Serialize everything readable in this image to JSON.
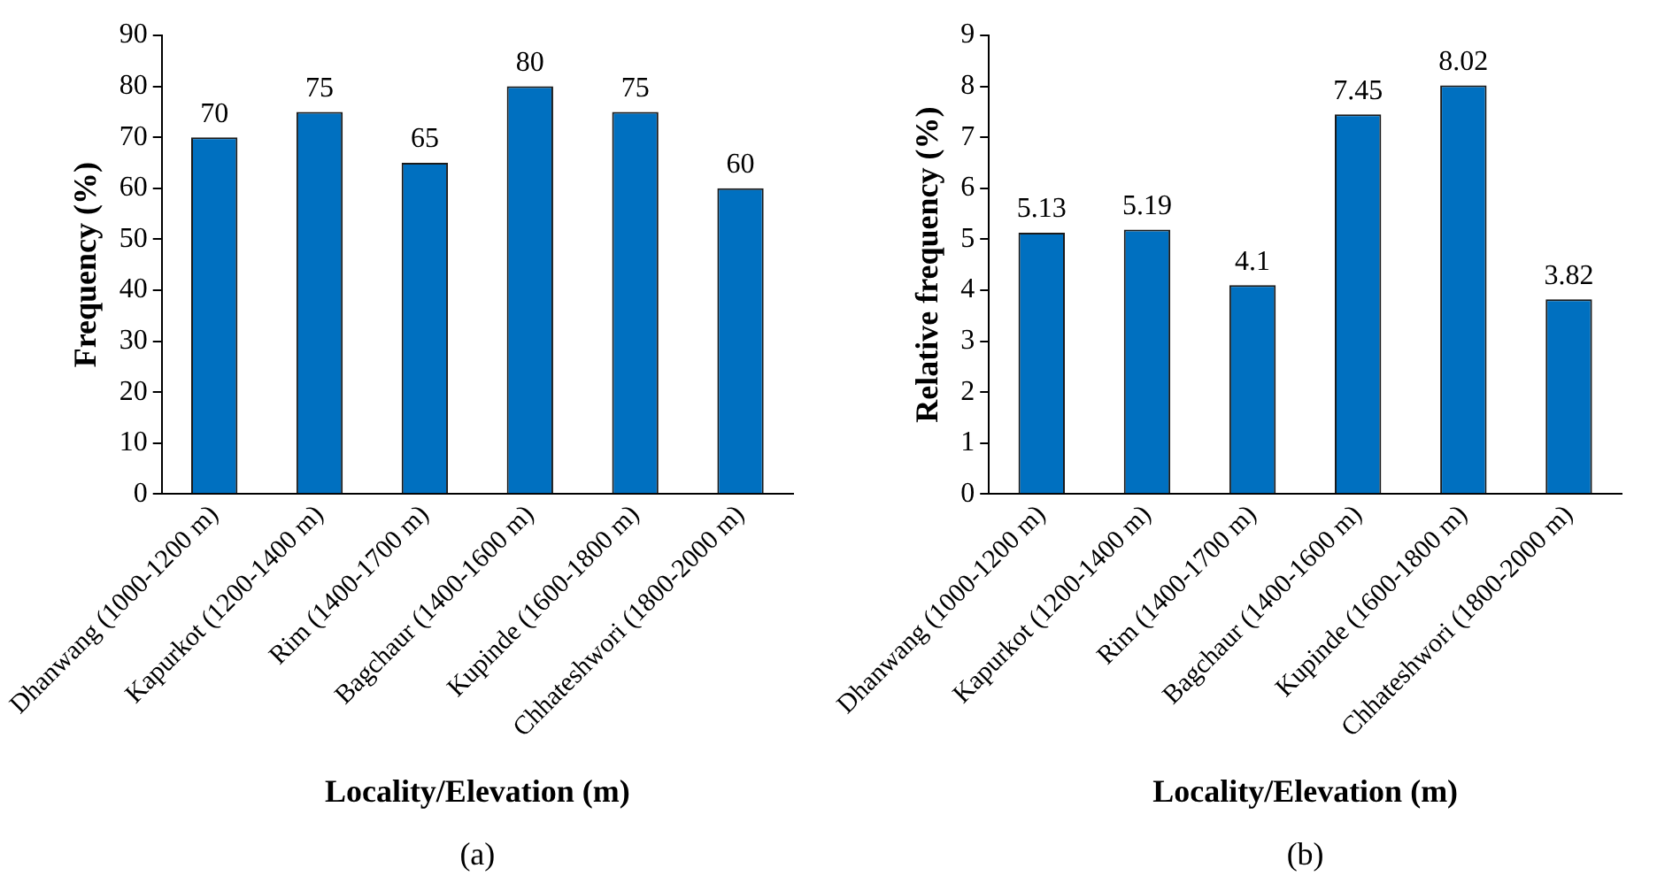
{
  "chart_data": [
    {
      "type": "bar",
      "ylabel": "Frequency (%)",
      "xlabel": "Locality/Elevation (m)",
      "annotations": [
        "(a)"
      ],
      "categories": [
        "Dhanwang (1000-1200 m)",
        "Kapurkot (1200-1400 m)",
        "Rim (1400-1700 m)",
        "Bagchaur (1400-1600 m)",
        "Kupinde (1600-1800 m)",
        "Chhateshwori (1800-2000 m)"
      ],
      "values": [
        70,
        75,
        65,
        80,
        75,
        60
      ],
      "color": "#0070c0",
      "ylim": [
        0,
        90
      ],
      "yticks": [
        0,
        10,
        20,
        30,
        40,
        50,
        60,
        70,
        80,
        90
      ],
      "grid": false,
      "legend": false,
      "data_labels": true
    },
    {
      "type": "bar",
      "ylabel": "Relative frequency (%)",
      "xlabel": "Locality/Elevation (m)",
      "annotations": [
        "(b)"
      ],
      "categories": [
        "Dhanwang (1000-1200 m)",
        "Kapurkot (1200-1400 m)",
        "Rim (1400-1700 m)",
        "Bagchaur (1400-1600 m)",
        "Kupinde (1600-1800 m)",
        "Chhateshwori (1800-2000 m)"
      ],
      "values": [
        5.13,
        5.19,
        4.1,
        7.45,
        8.02,
        3.82
      ],
      "color": "#0070c0",
      "ylim": [
        0,
        9
      ],
      "yticks": [
        0,
        1,
        2,
        3,
        4,
        5,
        6,
        7,
        8,
        9
      ],
      "grid": false,
      "legend": false,
      "data_labels": true
    }
  ]
}
